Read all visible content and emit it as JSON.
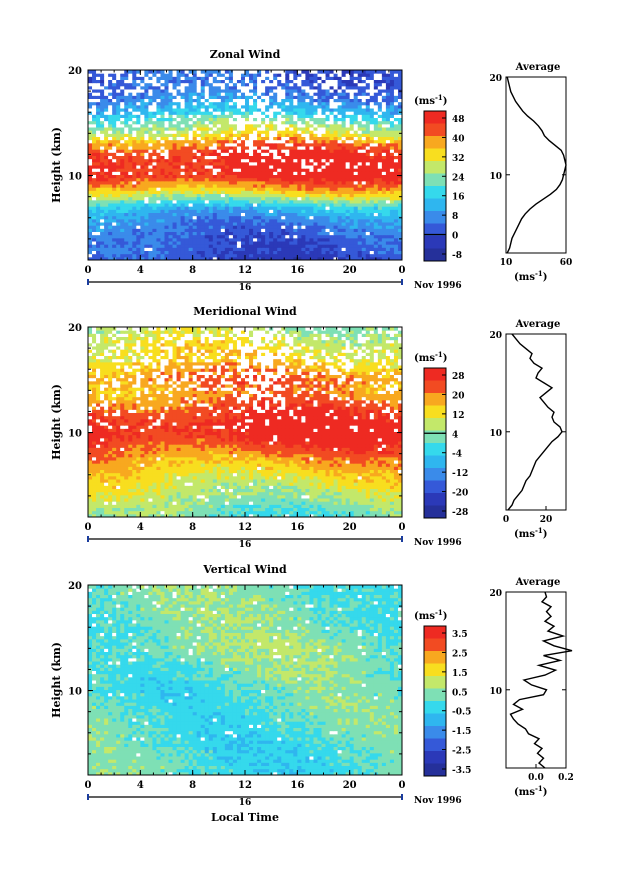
{
  "figure": {
    "local_time_label": "Local Time",
    "unit_label": "(ms",
    "unit_exp": "-1",
    "unit_close": ")",
    "date_label": "Nov 1996",
    "day_label": "16",
    "ylabel": "Height (km)"
  },
  "chart_data": [
    {
      "type": "heatmap",
      "title": "Zonal Wind",
      "xlabel": "",
      "ylabel": "Height (km)",
      "x_ticks": [
        "0",
        "4",
        "8",
        "12",
        "16",
        "20",
        "0"
      ],
      "y_ticks": [
        {
          "v": 20,
          "t": "20"
        },
        {
          "v": 10,
          "t": "10"
        }
      ],
      "ylim": [
        2,
        20
      ],
      "xlim": [
        0,
        24
      ],
      "colorbar": {
        "ticks": [
          "48",
          "40",
          "32",
          "24",
          "16",
          "8",
          "0",
          "-8"
        ],
        "zero_line_tick": "0",
        "colors": [
          "#ee2a22",
          "#f24b22",
          "#f8a81f",
          "#f8de1f",
          "#c3e86a",
          "#7ee0b5",
          "#35d9ec",
          "#2fb6ef",
          "#3a8bea",
          "#3559d8",
          "#2b39b8",
          "#25309a"
        ]
      },
      "profile_pattern": [
        {
          "h": 2.0,
          "v": -1
        },
        {
          "h": 3.0,
          "v": 1
        },
        {
          "h": 4.0,
          "v": 2
        },
        {
          "h": 5.0,
          "v": 4
        },
        {
          "h": 6.0,
          "v": 8
        },
        {
          "h": 7.0,
          "v": 14
        },
        {
          "h": 8.0,
          "v": 28
        },
        {
          "h": 9.0,
          "v": 40
        },
        {
          "h": 10.0,
          "v": 49
        },
        {
          "h": 11.0,
          "v": 50
        },
        {
          "h": 12.0,
          "v": 48
        },
        {
          "h": 13.0,
          "v": 42
        },
        {
          "h": 14.0,
          "v": 30
        },
        {
          "h": 15.0,
          "v": 24
        },
        {
          "h": 16.0,
          "v": 14
        },
        {
          "h": 17.0,
          "v": 8
        },
        {
          "h": 18.0,
          "v": 4
        },
        {
          "h": 19.0,
          "v": 2
        },
        {
          "h": 20.0,
          "v": 2
        }
      ],
      "average": {
        "title": "Average",
        "xlim": [
          10,
          60
        ],
        "x_ticks": [
          "10",
          "60"
        ],
        "y_ticks": [
          {
            "v": 20,
            "t": "20"
          },
          {
            "v": 10,
            "t": "10"
          }
        ],
        "xlabel": "(ms",
        "xlabel_exp": "-1",
        "xlabel_close": ")",
        "points": [
          {
            "h": 2.0,
            "v": 11
          },
          {
            "h": 2.5,
            "v": 13
          },
          {
            "h": 3.0,
            "v": 14
          },
          {
            "h": 3.5,
            "v": 15
          },
          {
            "h": 4.0,
            "v": 17
          },
          {
            "h": 4.5,
            "v": 19
          },
          {
            "h": 5.0,
            "v": 21
          },
          {
            "h": 5.5,
            "v": 23
          },
          {
            "h": 6.0,
            "v": 26
          },
          {
            "h": 6.5,
            "v": 30
          },
          {
            "h": 7.0,
            "v": 35
          },
          {
            "h": 7.5,
            "v": 41
          },
          {
            "h": 8.0,
            "v": 47
          },
          {
            "h": 8.5,
            "v": 52
          },
          {
            "h": 9.0,
            "v": 55
          },
          {
            "h": 9.5,
            "v": 57
          },
          {
            "h": 10.0,
            "v": 58
          },
          {
            "h": 10.5,
            "v": 59
          },
          {
            "h": 11.0,
            "v": 60
          },
          {
            "h": 11.5,
            "v": 59
          },
          {
            "h": 12.0,
            "v": 58
          },
          {
            "h": 12.5,
            "v": 56
          },
          {
            "h": 13.0,
            "v": 51
          },
          {
            "h": 13.5,
            "v": 46
          },
          {
            "h": 14.0,
            "v": 42
          },
          {
            "h": 14.5,
            "v": 40
          },
          {
            "h": 15.0,
            "v": 37
          },
          {
            "h": 15.5,
            "v": 33
          },
          {
            "h": 16.0,
            "v": 28
          },
          {
            "h": 16.5,
            "v": 24
          },
          {
            "h": 17.0,
            "v": 21
          },
          {
            "h": 17.5,
            "v": 18
          },
          {
            "h": 18.0,
            "v": 16
          },
          {
            "h": 18.5,
            "v": 14
          },
          {
            "h": 19.0,
            "v": 13
          },
          {
            "h": 19.5,
            "v": 12
          },
          {
            "h": 20.0,
            "v": 11
          }
        ]
      }
    },
    {
      "type": "heatmap",
      "title": "Meridional Wind",
      "xlabel": "",
      "ylabel": "Height (km)",
      "x_ticks": [
        "0",
        "4",
        "8",
        "12",
        "16",
        "20",
        "0"
      ],
      "y_ticks": [
        {
          "v": 20,
          "t": "20"
        },
        {
          "v": 10,
          "t": "10"
        }
      ],
      "ylim": [
        2,
        20
      ],
      "xlim": [
        0,
        24
      ],
      "colorbar": {
        "ticks": [
          "28",
          "20",
          "12",
          "4",
          "-4",
          "-12",
          "-20",
          "-28"
        ],
        "zero_line_tick": "4",
        "colors": [
          "#ee2a22",
          "#f24b22",
          "#f8a81f",
          "#f8de1f",
          "#c3e86a",
          "#7ee0b5",
          "#35d9ec",
          "#2fb6ef",
          "#3a8bea",
          "#3559d8",
          "#2b39b8",
          "#25309a"
        ]
      },
      "profile_pattern": [
        {
          "h": 2.0,
          "v": 1
        },
        {
          "h": 3.0,
          "v": 4
        },
        {
          "h": 4.0,
          "v": 7
        },
        {
          "h": 5.0,
          "v": 10
        },
        {
          "h": 6.0,
          "v": 13
        },
        {
          "h": 7.0,
          "v": 17
        },
        {
          "h": 8.0,
          "v": 21
        },
        {
          "h": 9.0,
          "v": 26
        },
        {
          "h": 10.0,
          "v": 30
        },
        {
          "h": 11.0,
          "v": 29
        },
        {
          "h": 12.0,
          "v": 26
        },
        {
          "h": 13.0,
          "v": 22
        },
        {
          "h": 14.0,
          "v": 18
        },
        {
          "h": 15.0,
          "v": 22
        },
        {
          "h": 16.0,
          "v": 18
        },
        {
          "h": 17.0,
          "v": 13
        },
        {
          "h": 18.0,
          "v": 12
        },
        {
          "h": 19.0,
          "v": 9
        },
        {
          "h": 20.0,
          "v": 6
        }
      ],
      "average": {
        "title": "Average",
        "xlim": [
          0,
          30
        ],
        "x_ticks": [
          "0",
          "20"
        ],
        "tick_values": [
          0,
          20
        ],
        "y_ticks": [
          {
            "v": 20,
            "t": "20"
          },
          {
            "v": 10,
            "t": "10"
          }
        ],
        "xlabel": "(ms",
        "xlabel_exp": "-1",
        "xlabel_close": ")",
        "points": [
          {
            "h": 2.0,
            "v": 1
          },
          {
            "h": 2.5,
            "v": 3
          },
          {
            "h": 3.0,
            "v": 4
          },
          {
            "h": 3.5,
            "v": 6
          },
          {
            "h": 4.0,
            "v": 8
          },
          {
            "h": 4.5,
            "v": 9
          },
          {
            "h": 5.0,
            "v": 10
          },
          {
            "h": 5.5,
            "v": 12
          },
          {
            "h": 6.0,
            "v": 13
          },
          {
            "h": 6.5,
            "v": 14
          },
          {
            "h": 7.0,
            "v": 15
          },
          {
            "h": 7.5,
            "v": 17
          },
          {
            "h": 8.0,
            "v": 19
          },
          {
            "h": 8.5,
            "v": 21
          },
          {
            "h": 9.0,
            "v": 23
          },
          {
            "h": 9.5,
            "v": 26
          },
          {
            "h": 10.0,
            "v": 28
          },
          {
            "h": 10.5,
            "v": 27
          },
          {
            "h": 11.0,
            "v": 24
          },
          {
            "h": 11.5,
            "v": 23
          },
          {
            "h": 12.0,
            "v": 24
          },
          {
            "h": 12.5,
            "v": 21
          },
          {
            "h": 13.0,
            "v": 19
          },
          {
            "h": 13.5,
            "v": 17
          },
          {
            "h": 14.0,
            "v": 20
          },
          {
            "h": 14.5,
            "v": 23
          },
          {
            "h": 15.0,
            "v": 19
          },
          {
            "h": 15.5,
            "v": 15
          },
          {
            "h": 16.0,
            "v": 16
          },
          {
            "h": 16.5,
            "v": 18
          },
          {
            "h": 17.0,
            "v": 14
          },
          {
            "h": 17.5,
            "v": 12
          },
          {
            "h": 18.0,
            "v": 13
          },
          {
            "h": 18.5,
            "v": 10
          },
          {
            "h": 19.0,
            "v": 7
          },
          {
            "h": 19.5,
            "v": 5
          },
          {
            "h": 20.0,
            "v": 3
          }
        ]
      }
    },
    {
      "type": "heatmap",
      "title": "Vertical Wind",
      "xlabel": "Local Time",
      "ylabel": "Height (km)",
      "x_ticks": [
        "0",
        "4",
        "8",
        "12",
        "16",
        "20",
        "0"
      ],
      "y_ticks": [
        {
          "v": 20,
          "t": "20"
        },
        {
          "v": 10,
          "t": "10"
        }
      ],
      "ylim": [
        2,
        20
      ],
      "xlim": [
        0,
        24
      ],
      "colorbar": {
        "ticks": [
          "3.5",
          "2.5",
          "1.5",
          "0.5",
          "-0.5",
          "-1.5",
          "-2.5",
          "-3.5"
        ],
        "zero_line_tick": "",
        "colors": [
          "#ee2a22",
          "#f24b22",
          "#f8a81f",
          "#f8de1f",
          "#c3e86a",
          "#7ee0b5",
          "#35d9ec",
          "#2fb6ef",
          "#3a8bea",
          "#3559d8",
          "#2b39b8",
          "#25309a"
        ]
      },
      "profile_pattern": [
        {
          "h": 2.0,
          "v": 0.0
        },
        {
          "h": 4.0,
          "v": -0.1
        },
        {
          "h": 6.0,
          "v": 0.0
        },
        {
          "h": 8.0,
          "v": 0.1
        },
        {
          "h": 10.0,
          "v": 0.0
        },
        {
          "h": 12.0,
          "v": 0.2
        },
        {
          "h": 14.0,
          "v": 0.5
        },
        {
          "h": 16.0,
          "v": 0.2
        },
        {
          "h": 18.0,
          "v": 0.3
        },
        {
          "h": 20.0,
          "v": 0.2
        }
      ],
      "average": {
        "title": "Average",
        "xlim": [
          -0.2,
          0.2
        ],
        "x_ticks": [
          "0.0",
          "0.2"
        ],
        "tick_values": [
          0.0,
          0.2
        ],
        "y_ticks": [
          {
            "v": 20,
            "t": "20"
          },
          {
            "v": 10,
            "t": "10"
          }
        ],
        "xlabel": "(ms",
        "xlabel_exp": "-1",
        "xlabel_close": ")",
        "points": [
          {
            "h": 2.0,
            "v": 0.06
          },
          {
            "h": 2.5,
            "v": 0.02
          },
          {
            "h": 3.0,
            "v": 0.05
          },
          {
            "h": 3.5,
            "v": 0.01
          },
          {
            "h": 4.0,
            "v": 0.04
          },
          {
            "h": 4.5,
            "v": -0.01
          },
          {
            "h": 5.0,
            "v": 0.02
          },
          {
            "h": 5.5,
            "v": -0.05
          },
          {
            "h": 6.0,
            "v": -0.07
          },
          {
            "h": 6.5,
            "v": -0.12
          },
          {
            "h": 7.0,
            "v": -0.15
          },
          {
            "h": 7.5,
            "v": -0.17
          },
          {
            "h": 8.0,
            "v": -0.09
          },
          {
            "h": 8.5,
            "v": -0.15
          },
          {
            "h": 9.0,
            "v": -0.11
          },
          {
            "h": 9.5,
            "v": 0.05
          },
          {
            "h": 10.0,
            "v": 0.07
          },
          {
            "h": 10.5,
            "v": -0.03
          },
          {
            "h": 11.0,
            "v": -0.08
          },
          {
            "h": 11.5,
            "v": 0.06
          },
          {
            "h": 12.0,
            "v": 0.13
          },
          {
            "h": 12.5,
            "v": 0.02
          },
          {
            "h": 13.0,
            "v": 0.16
          },
          {
            "h": 13.5,
            "v": 0.05
          },
          {
            "h": 14.0,
            "v": 0.24
          },
          {
            "h": 14.5,
            "v": 0.12
          },
          {
            "h": 15.0,
            "v": 0.05
          },
          {
            "h": 15.5,
            "v": 0.18
          },
          {
            "h": 16.0,
            "v": 0.08
          },
          {
            "h": 16.5,
            "v": 0.12
          },
          {
            "h": 17.0,
            "v": 0.06
          },
          {
            "h": 17.5,
            "v": 0.1
          },
          {
            "h": 18.0,
            "v": 0.07
          },
          {
            "h": 18.5,
            "v": 0.1
          },
          {
            "h": 19.0,
            "v": 0.04
          },
          {
            "h": 19.5,
            "v": 0.07
          },
          {
            "h": 20.0,
            "v": 0.06
          }
        ]
      }
    }
  ]
}
